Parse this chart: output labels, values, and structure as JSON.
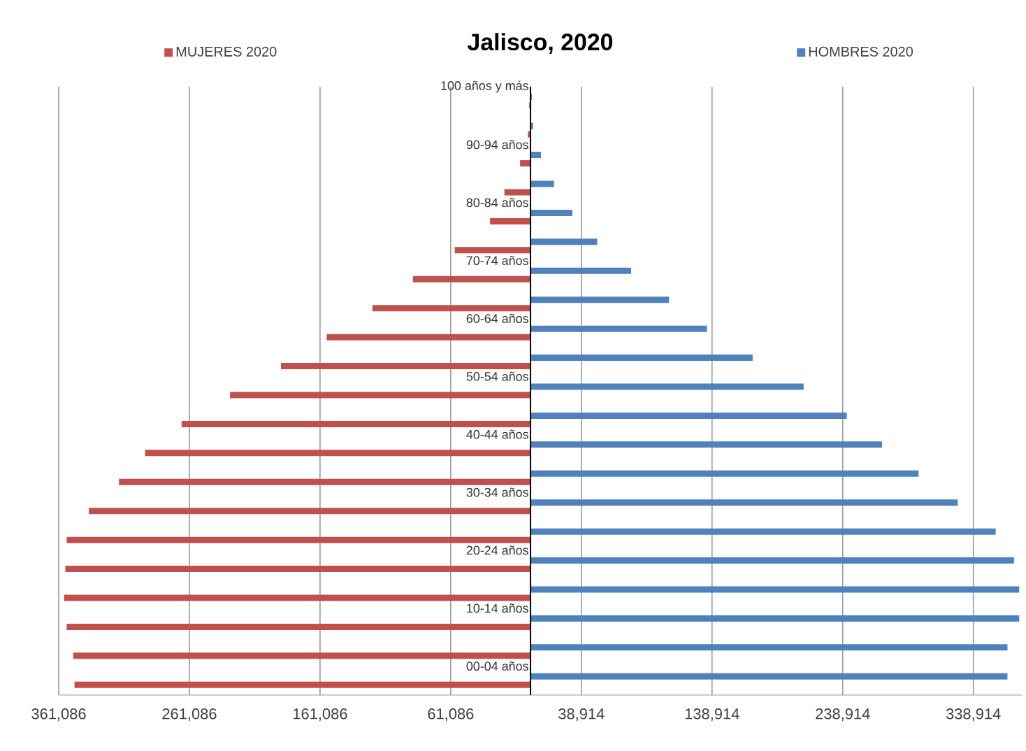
{
  "chart_data": {
    "type": "bar",
    "orientation": "horizontal",
    "title": "Jalisco, 2020",
    "categories": [
      "100 años y más",
      null,
      "90-94 años",
      null,
      "80-84 años",
      null,
      "70-74 años",
      null,
      "60-64 años",
      null,
      "50-54 años",
      null,
      "40-44 años",
      null,
      "30-34 años",
      null,
      "20-24 años",
      null,
      "10-14 años",
      null,
      "00-04 años"
    ],
    "series": [
      {
        "name": "MUJERES 2020",
        "color": "#c0504d",
        "values": [
          -1000,
          -2000,
          -8000,
          -20000,
          -31000,
          -58000,
          -90000,
          -121000,
          -156000,
          -191000,
          -230000,
          -267000,
          -295000,
          -315000,
          -338000,
          -355000,
          -356000,
          -357000,
          -355000,
          -350000,
          -349000
        ]
      },
      {
        "name": "HOMBRES 2020",
        "color": "#4f81bd",
        "values": [
          1000,
          2000,
          8000,
          18000,
          32000,
          51000,
          77000,
          106000,
          135000,
          170000,
          209000,
          242000,
          269000,
          297000,
          327000,
          356000,
          370000,
          374000,
          374000,
          365000,
          365000
        ]
      }
    ],
    "xlim": [
      -361086,
      376000
    ],
    "xticks": [
      {
        "value": -361086,
        "label": "361,086"
      },
      {
        "value": -261086,
        "label": "261,086"
      },
      {
        "value": -161086,
        "label": "161,086"
      },
      {
        "value": -61086,
        "label": "61,086"
      },
      {
        "value": 38914,
        "label": "38,914"
      },
      {
        "value": 138914,
        "label": "138,914"
      },
      {
        "value": 238914,
        "label": "238,914"
      },
      {
        "value": 338914,
        "label": "338,914"
      }
    ],
    "grid": "x",
    "legend": "top"
  }
}
